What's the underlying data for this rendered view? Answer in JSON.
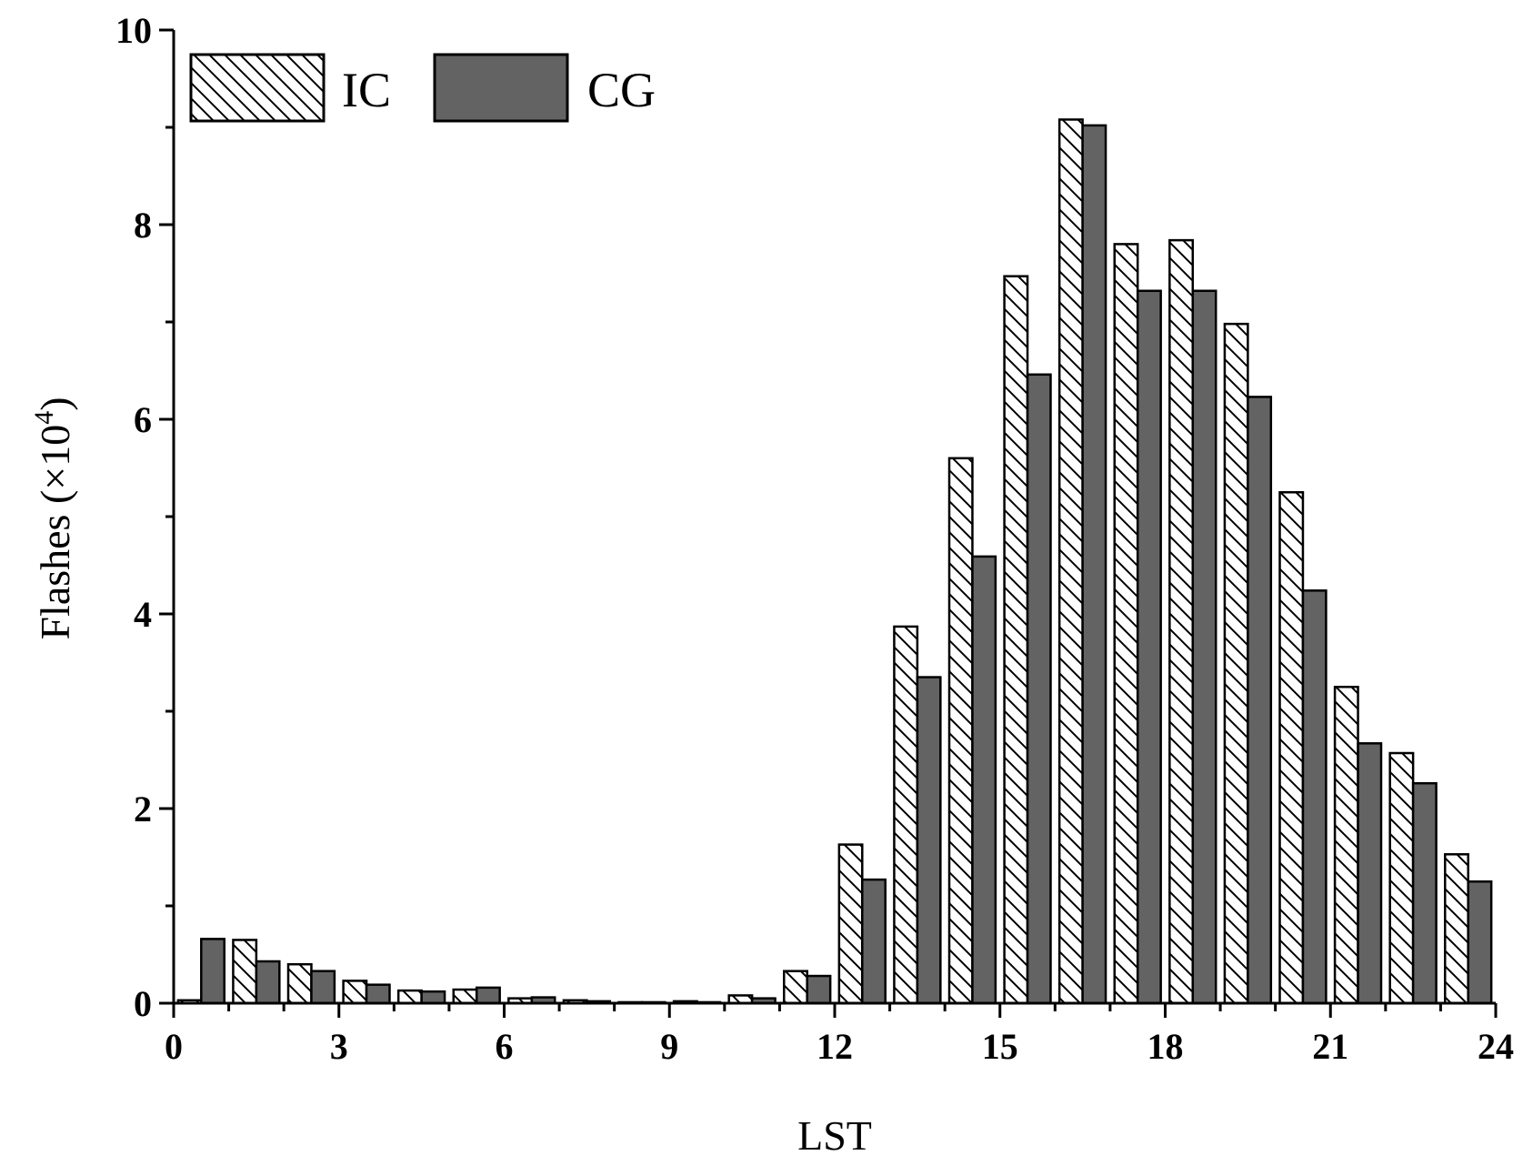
{
  "chart_data": {
    "type": "bar",
    "xlabel": "LST",
    "ylabel": "Flashes (×10",
    "ylabel_sup": "4",
    "ylabel_close": ")",
    "xlim": [
      0,
      24
    ],
    "ylim": [
      0,
      10
    ],
    "x_ticks": [
      0,
      3,
      6,
      9,
      12,
      15,
      18,
      21,
      24
    ],
    "y_ticks": [
      0,
      2,
      4,
      6,
      8,
      10
    ],
    "grid": false,
    "legend_position": "top-left",
    "categories": [
      0,
      1,
      2,
      3,
      4,
      5,
      6,
      7,
      8,
      9,
      10,
      11,
      12,
      13,
      14,
      15,
      16,
      17,
      18,
      19,
      20,
      21,
      22,
      23
    ],
    "series": [
      {
        "name": "IC",
        "fill": "hatched",
        "color": "#ffffff",
        "values": [
          0.03,
          0.65,
          0.4,
          0.23,
          0.13,
          0.14,
          0.05,
          0.03,
          0.01,
          0.02,
          0.08,
          0.33,
          1.63,
          3.87,
          5.6,
          7.47,
          9.08,
          7.8,
          7.84,
          6.98,
          5.25,
          3.25,
          2.57,
          1.53
        ]
      },
      {
        "name": "CG",
        "fill": "solid",
        "color": "#636363",
        "values": [
          0.66,
          0.43,
          0.33,
          0.19,
          0.12,
          0.16,
          0.06,
          0.02,
          0.01,
          0.01,
          0.05,
          0.28,
          1.27,
          3.35,
          4.59,
          6.46,
          9.02,
          7.32,
          7.32,
          6.23,
          4.24,
          2.67,
          2.26,
          1.25
        ]
      }
    ]
  }
}
